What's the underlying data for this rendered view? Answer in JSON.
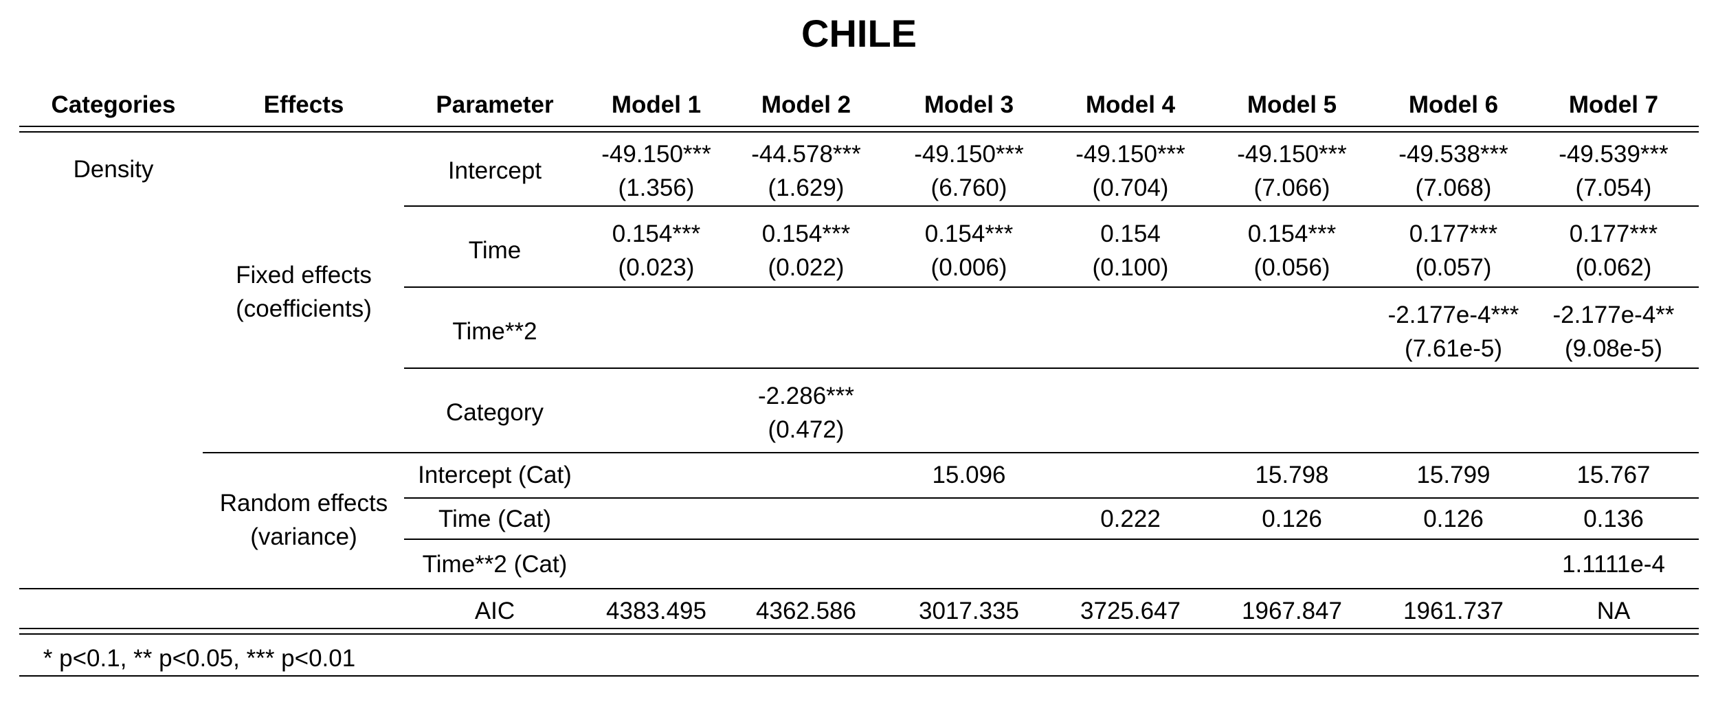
{
  "title": "CHILE",
  "headers": {
    "categories": "Categories",
    "effects": "Effects",
    "parameter": "Parameter",
    "models": [
      "Model 1",
      "Model 2",
      "Model 3",
      "Model 4",
      "Model 5",
      "Model 6",
      "Model 7"
    ]
  },
  "category": "Density",
  "effect_groups": {
    "fixed": [
      "Fixed effects",
      "(coefficients)"
    ],
    "random": [
      "Random effects",
      "(variance)"
    ]
  },
  "rows": {
    "intercept": {
      "parameter": "Intercept",
      "estimates": [
        "-49.150***",
        "-44.578***",
        "-49.150***",
        "-49.150***",
        "-49.150***",
        "-49.538***",
        "-49.539***"
      ],
      "se": [
        "(1.356)",
        "(1.629)",
        "(6.760)",
        "(0.704)",
        "(7.066)",
        "(7.068)",
        "(7.054)"
      ]
    },
    "time": {
      "parameter": "Time",
      "estimates": [
        "0.154***",
        "0.154***",
        "0.154***",
        "0.154",
        "0.154***",
        "0.177***",
        "0.177***"
      ],
      "se": [
        "(0.023)",
        "(0.022)",
        "(0.006)",
        "(0.100)",
        "(0.056)",
        "(0.057)",
        "(0.062)"
      ]
    },
    "time2": {
      "parameter": "Time**2",
      "estimates": [
        "",
        "",
        "",
        "",
        "",
        "-2.177e-4***",
        "-2.177e-4**"
      ],
      "se": [
        "",
        "",
        "",
        "",
        "",
        "(7.61e-5)",
        "(9.08e-5)"
      ]
    },
    "category": {
      "parameter": "Category",
      "estimates": [
        "",
        "-2.286***",
        "",
        "",
        "",
        "",
        ""
      ],
      "se": [
        "",
        "(0.472)",
        "",
        "",
        "",
        "",
        ""
      ]
    },
    "intercept_cat": {
      "parameter": "Intercept (Cat)",
      "values": [
        "",
        "",
        "15.096",
        "",
        "15.798",
        "15.799",
        "15.767"
      ]
    },
    "time_cat": {
      "parameter": "Time (Cat)",
      "values": [
        "",
        "",
        "",
        "0.222",
        "0.126",
        "0.126",
        "0.136"
      ]
    },
    "time2_cat": {
      "parameter": "Time**2 (Cat)",
      "values": [
        "",
        "",
        "",
        "",
        "",
        "",
        "1.1111e-4"
      ]
    },
    "aic": {
      "parameter": "AIC",
      "values": [
        "4383.495",
        "4362.586",
        "3017.335",
        "3725.647",
        "1967.847",
        "1961.737",
        "NA"
      ]
    }
  },
  "footnote": "* p<0.1, ** p<0.05, *** p<0.01"
}
